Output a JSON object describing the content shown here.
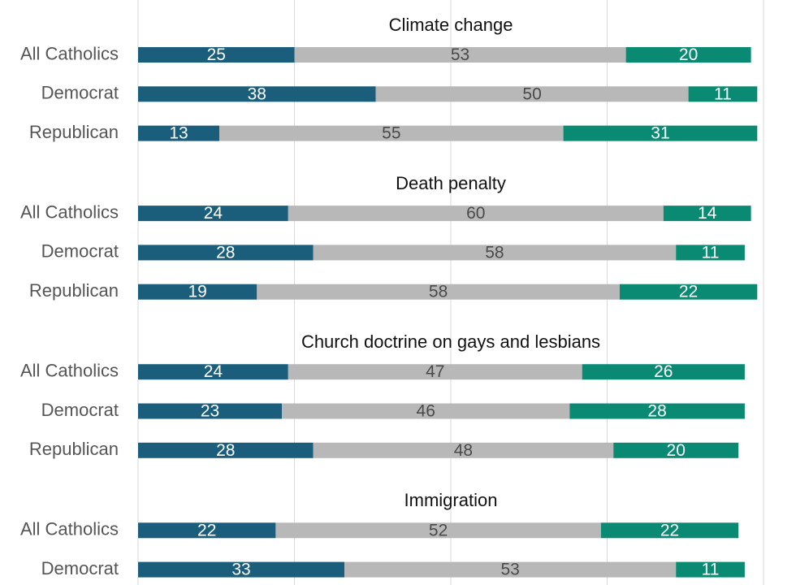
{
  "colors": {
    "first": "#1b5e7c",
    "middle": "#b8b8b8",
    "last": "#0a8a73",
    "grid": "#d9d9d9",
    "category_text": "#555555",
    "title_text": "#111111",
    "label_on_dark": "#ffffff",
    "label_on_light": "#4a4a4a"
  },
  "chart_data": {
    "type": "bar",
    "orientation": "horizontal",
    "stacked": true,
    "xlim": [
      0,
      100
    ],
    "grid": true,
    "axis_ticks_visible": false,
    "panels": [
      {
        "title": "Climate change",
        "rows": [
          {
            "label": "All Catholics",
            "values": [
              25,
              53,
              20
            ]
          },
          {
            "label": "Democrat",
            "values": [
              38,
              50,
              11
            ]
          },
          {
            "label": "Republican",
            "values": [
              13,
              55,
              31
            ]
          }
        ]
      },
      {
        "title": "Death penalty",
        "rows": [
          {
            "label": "All Catholics",
            "values": [
              24,
              60,
              14
            ]
          },
          {
            "label": "Democrat",
            "values": [
              28,
              58,
              11
            ]
          },
          {
            "label": "Republican",
            "values": [
              19,
              58,
              22
            ]
          }
        ]
      },
      {
        "title": "Church doctrine on gays and lesbians",
        "rows": [
          {
            "label": "All Catholics",
            "values": [
              24,
              47,
              26
            ]
          },
          {
            "label": "Democrat",
            "values": [
              23,
              46,
              28
            ]
          },
          {
            "label": "Republican",
            "values": [
              28,
              48,
              20
            ]
          }
        ]
      },
      {
        "title": "Immigration",
        "rows": [
          {
            "label": "All Catholics",
            "values": [
              22,
              52,
              22
            ]
          },
          {
            "label": "Democrat",
            "values": [
              33,
              53,
              11
            ]
          }
        ]
      }
    ]
  }
}
